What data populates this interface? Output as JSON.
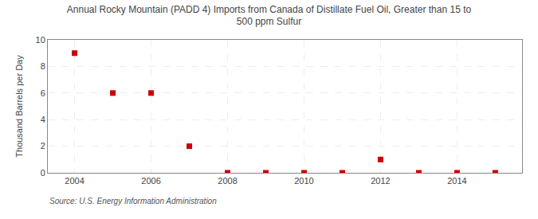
{
  "chart_data": {
    "type": "scatter",
    "title": "Annual Rocky Mountain (PADD 4) Imports from Canada of Distillate Fuel Oil, Greater than 15 to\n500 ppm Sulfur",
    "ylabel": "Thousand Barrels per Day",
    "annotations": [
      "Source: U.S. Energy Information Administration"
    ],
    "x": [
      2004,
      2005,
      2006,
      2007,
      2008,
      2009,
      2010,
      2011,
      2012,
      2013,
      2014,
      2015
    ],
    "values": [
      9.0,
      6.0,
      6.0,
      2.0,
      0.0,
      0.0,
      0.0,
      0.0,
      1.0,
      0.0,
      0.0,
      0.0
    ],
    "color": "#cc0000",
    "marker": "square",
    "xlim": [
      2003.3,
      2015.7
    ],
    "xticks": [
      2004,
      2006,
      2008,
      2010,
      2012,
      2014
    ],
    "ylim": [
      0,
      10
    ],
    "yticks": [
      0,
      2,
      4,
      6,
      8,
      10
    ],
    "grid": true
  }
}
